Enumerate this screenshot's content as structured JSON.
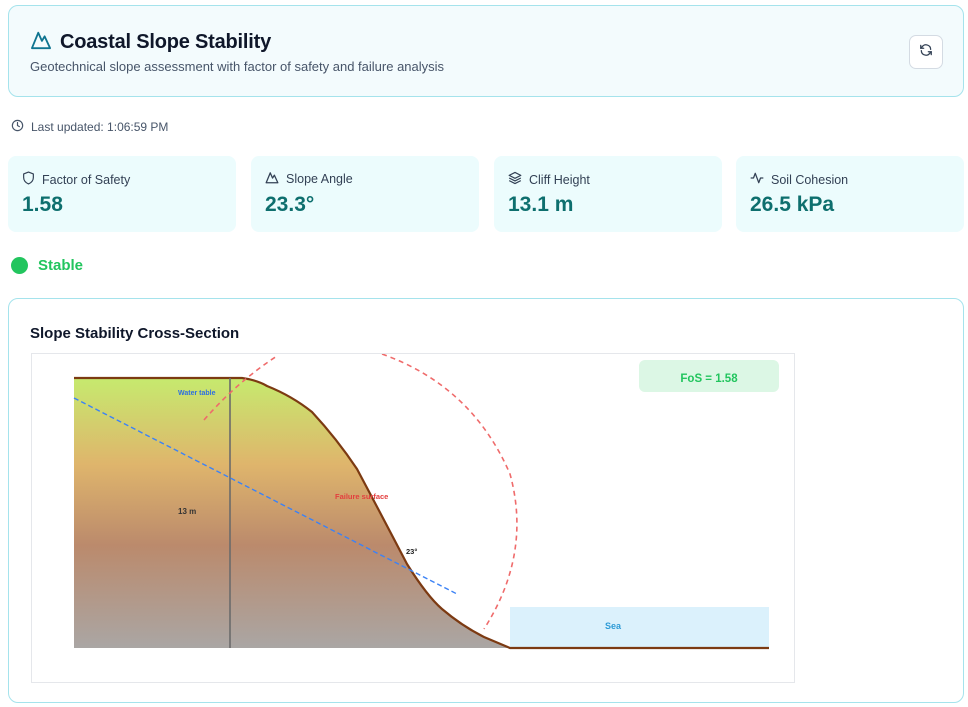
{
  "header": {
    "title": "Coastal Slope Stability",
    "subtitle": "Geotechnical slope assessment with factor of safety and failure analysis",
    "refresh_icon": "refresh-icon"
  },
  "last_updated": {
    "text": "Last updated: 1:06:59 PM",
    "icon": "clock-icon"
  },
  "metrics": [
    {
      "label": "Factor of Safety",
      "value": "1.58",
      "icon": "shield-icon"
    },
    {
      "label": "Slope Angle",
      "value": "23.3°",
      "icon": "mountain-icon"
    },
    {
      "label": "Cliff Height",
      "value": "13.1 m",
      "icon": "layers-icon"
    },
    {
      "label": "Soil Cohesion",
      "value": "26.5 kPa",
      "icon": "activity-icon"
    }
  ],
  "status": {
    "label": "Stable",
    "color": "#22c55e"
  },
  "chart": {
    "title": "Slope Stability Cross-Section",
    "fos_badge": "FoS = 1.58",
    "water_table_label": "Water table",
    "height_label": "13 m",
    "failure_label": "Failure surface",
    "angle_label": "23°",
    "sea_label": "Sea"
  },
  "colors": {
    "accent": "#0e7490",
    "value_text": "#0e6f6e",
    "stable": "#22c55e",
    "failure_arc": "#ef4444",
    "water_table": "#3b82f6",
    "ground_line": "#7c3a12",
    "sea": "#dbf1fc"
  }
}
